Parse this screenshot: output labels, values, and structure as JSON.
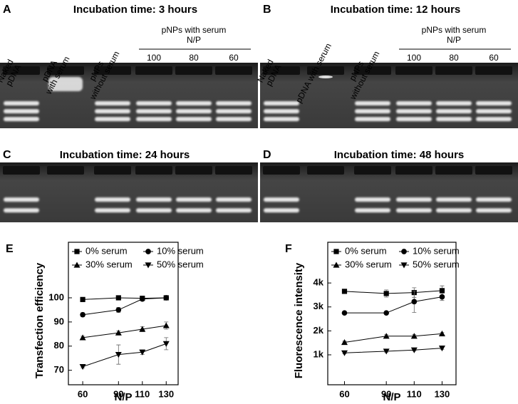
{
  "gels": [
    {
      "letter": "A",
      "title": "Incubation time: 3 hours",
      "lanes": [
        [
          "Naked",
          "pDNA"
        ],
        [
          "pDNA",
          "with serum"
        ],
        [
          "pNPs",
          "without serum"
        ]
      ],
      "group": [
        "pNPs with serum",
        "N/P"
      ],
      "np": [
        "100",
        "80",
        "60"
      ]
    },
    {
      "letter": "B",
      "title": "Incubation time: 12 hours",
      "lanes": [
        [
          "Naked",
          "pDNA"
        ],
        [
          "pDNA with serum"
        ],
        [
          "pNPs",
          "without serum"
        ]
      ],
      "group": [
        "pNPs with serum",
        "N/P"
      ],
      "np": [
        "100",
        "80",
        "60"
      ]
    },
    {
      "letter": "C",
      "title": "Incubation time: 24 hours"
    },
    {
      "letter": "D",
      "title": "Incubation time: 48 hours"
    }
  ],
  "chart_data": [
    {
      "type": "line",
      "panel": "E",
      "y_label": "Transfection efficiency",
      "x_label": "N/P",
      "x": [
        60,
        90,
        110,
        130
      ],
      "xlim": [
        48,
        140
      ],
      "xticks": [
        60,
        90,
        110,
        130
      ],
      "ylim": [
        64,
        123
      ],
      "yticks": [
        70,
        80,
        90,
        100
      ],
      "series": [
        {
          "name": "0% serum",
          "color": "#000000",
          "marker": "square",
          "values": [
            99.3,
            100,
            99.8,
            100
          ],
          "errors": [
            0.4,
            0.4,
            0.6,
            0.4
          ]
        },
        {
          "name": "10% serum",
          "color": "#000000",
          "marker": "circle",
          "values": [
            93,
            95,
            99.5,
            100
          ],
          "errors": [
            0.8,
            1,
            0.6,
            0.5
          ]
        },
        {
          "name": "30% serum",
          "color": "#000000",
          "marker": "triangle-up",
          "values": [
            83.5,
            85.5,
            87,
            88.5
          ],
          "errors": [
            0.6,
            0.8,
            1,
            1.5
          ]
        },
        {
          "name": "50% serum",
          "color": "#000000",
          "marker": "triangle-down",
          "values": [
            71.5,
            76.5,
            77.5,
            81
          ],
          "errors": [
            0.5,
            4,
            1,
            2.5
          ]
        }
      ]
    },
    {
      "type": "line",
      "panel": "F",
      "y_label": "Fluorescence intensity",
      "x_label": "N/P",
      "x": [
        60,
        90,
        110,
        130
      ],
      "xlim": [
        48,
        140
      ],
      "xticks": [
        60,
        90,
        110,
        130
      ],
      "ylim": [
        -250,
        5700
      ],
      "yticks": [
        {
          "value": 1000,
          "label": "1k"
        },
        {
          "value": 2000,
          "label": "2k"
        },
        {
          "value": 3000,
          "label": "3k"
        },
        {
          "value": 4000,
          "label": "4k"
        }
      ],
      "series": [
        {
          "name": "0% serum",
          "color": "#000000",
          "marker": "square",
          "values": [
            3650,
            3560,
            3600,
            3680
          ],
          "errors": [
            80,
            150,
            200,
            200
          ]
        },
        {
          "name": "10% serum",
          "color": "#000000",
          "marker": "circle",
          "values": [
            2750,
            2750,
            3220,
            3420
          ],
          "errors": [
            50,
            50,
            450,
            150
          ]
        },
        {
          "name": "30% serum",
          "color": "#000000",
          "marker": "triangle-up",
          "values": [
            1520,
            1780,
            1780,
            1880
          ],
          "errors": [
            50,
            60,
            60,
            50
          ]
        },
        {
          "name": "50% serum",
          "color": "#000000",
          "marker": "triangle-down",
          "values": [
            1080,
            1150,
            1200,
            1280
          ],
          "errors": [
            40,
            40,
            40,
            50
          ]
        }
      ]
    }
  ]
}
